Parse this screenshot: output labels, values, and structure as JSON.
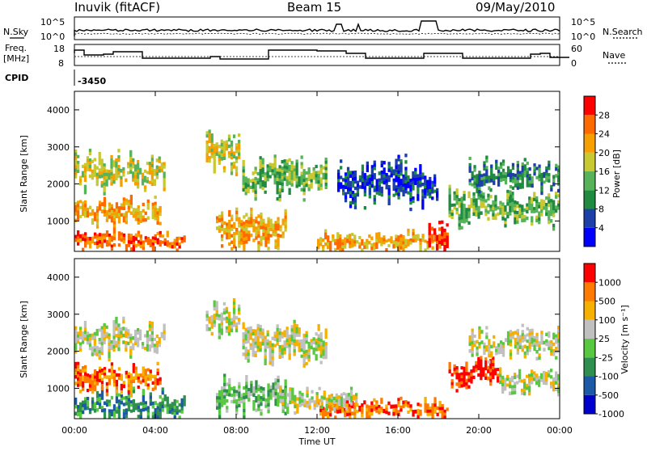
{
  "header": {
    "title": "Inuvik (fitACF)",
    "beam": "Beam 15",
    "date": "09/May/2010"
  },
  "top_panels": {
    "nsky_label": "N.Sky",
    "nsearch_label": "N.Search",
    "freq_label_top": "Freq.",
    "freq_label_unit": "[MHz]",
    "nave_label": "Nave",
    "cpid_label": "CPID",
    "cpid_value": "-3450",
    "noise_ticks_left": [
      "10^5",
      "10^0"
    ],
    "noise_ticks_right": [
      "10^5",
      "10^0"
    ],
    "freq_ticks_left": [
      "18",
      "8"
    ],
    "nave_ticks_right": [
      "60",
      "0"
    ]
  },
  "chart_data": [
    {
      "type": "heatmap",
      "panel": "power",
      "ylabel": "Slant Range [km]",
      "yticks": [
        "1000",
        "2000",
        "3000",
        "4000"
      ],
      "ylim": [
        180,
        4500
      ],
      "colorbar_label": "Power [dB]",
      "colorbar_ticks": [
        "28",
        "24",
        "20",
        "16",
        "12",
        "8",
        "4"
      ],
      "colors": [
        "#0000ff",
        "#1c3fa8",
        "#1f8a40",
        "#57b35a",
        "#c8c832",
        "#f5a000",
        "#ff6a00",
        "#ff0000"
      ],
      "bands": [
        {
          "t0": 0.0,
          "t1": 5.5,
          "r0": 200,
          "r1": 700,
          "level": 6
        },
        {
          "t0": 0.0,
          "t1": 4.3,
          "r0": 900,
          "r1": 1600,
          "level": 5
        },
        {
          "t0": 0.0,
          "t1": 4.5,
          "r0": 1900,
          "r1": 2800,
          "level": 4
        },
        {
          "t0": 6.5,
          "t1": 8.2,
          "r0": 2400,
          "r1": 3400,
          "level": 4
        },
        {
          "t0": 7.0,
          "t1": 10.5,
          "r0": 300,
          "r1": 1300,
          "level": 5
        },
        {
          "t0": 8.3,
          "t1": 12.5,
          "r0": 1700,
          "r1": 2700,
          "level": 3
        },
        {
          "t0": 12.0,
          "t1": 18.5,
          "r0": 200,
          "r1": 700,
          "level": 5
        },
        {
          "t0": 13.0,
          "t1": 18.0,
          "r0": 1400,
          "r1": 2600,
          "level": 1
        },
        {
          "t0": 17.5,
          "t1": 18.5,
          "r0": 200,
          "r1": 900,
          "level": 7
        },
        {
          "t0": 18.5,
          "t1": 24.0,
          "r0": 900,
          "r1": 1800,
          "level": 3
        },
        {
          "t0": 19.5,
          "t1": 24.0,
          "r0": 1800,
          "r1": 2600,
          "level": 2
        }
      ]
    },
    {
      "type": "heatmap",
      "panel": "velocity",
      "ylabel": "Slant Range [km]",
      "yticks": [
        "1000",
        "2000",
        "3000",
        "4000"
      ],
      "ylim": [
        180,
        4500
      ],
      "colorbar_label": "Velocity [m s⁻¹]",
      "colorbar_ticks": [
        "1000",
        "500",
        "100",
        "25",
        "-25",
        "-100",
        "-500",
        "-1000"
      ],
      "colors": [
        "#0000cc",
        "#1c5aa8",
        "#2e8f4e",
        "#57c840",
        "#c0c0c0",
        "#f5b000",
        "#ff7a00",
        "#ff0000"
      ],
      "bands": [
        {
          "t0": 0.0,
          "t1": 5.5,
          "r0": 200,
          "r1": 900,
          "level": 2
        },
        {
          "t0": 0.0,
          "t1": 4.3,
          "r0": 900,
          "r1": 1600,
          "level": 6
        },
        {
          "t0": 0.0,
          "t1": 4.5,
          "r0": 1900,
          "r1": 2800,
          "level": 4
        },
        {
          "t0": 6.5,
          "t1": 8.2,
          "r0": 2400,
          "r1": 3400,
          "level": 4
        },
        {
          "t0": 7.0,
          "t1": 10.5,
          "r0": 300,
          "r1": 1300,
          "level": 3
        },
        {
          "t0": 8.3,
          "t1": 12.5,
          "r0": 1700,
          "r1": 2700,
          "level": 4
        },
        {
          "t0": 12.0,
          "t1": 18.5,
          "r0": 200,
          "r1": 700,
          "level": 6
        },
        {
          "t0": 10.0,
          "t1": 14.0,
          "r0": 400,
          "r1": 1000,
          "level": 4
        },
        {
          "t0": 18.5,
          "t1": 21.0,
          "r0": 1000,
          "r1": 1800,
          "level": 7
        },
        {
          "t0": 19.5,
          "t1": 24.0,
          "r0": 1800,
          "r1": 2600,
          "level": 4
        },
        {
          "t0": 21.0,
          "t1": 24.0,
          "r0": 900,
          "r1": 1500,
          "level": 4
        }
      ]
    }
  ],
  "xaxis": {
    "label": "Time UT",
    "ticks": [
      "00:00",
      "04:00",
      "08:00",
      "12:00",
      "16:00",
      "20:00",
      "00:00"
    ],
    "range_hours": [
      0,
      24
    ]
  }
}
